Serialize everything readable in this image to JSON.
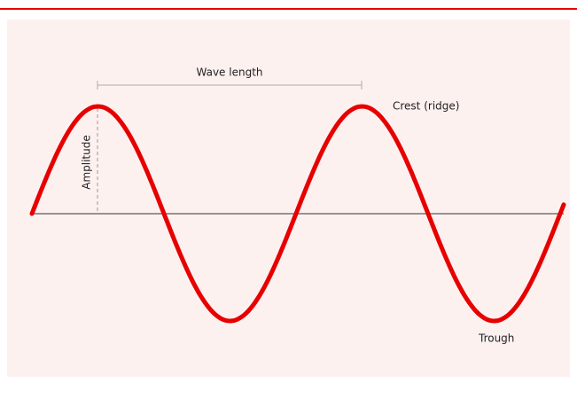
{
  "annotations": {
    "wave_length": "Wave length",
    "crest": "Crest (ridge)",
    "amplitude": "Amplitude",
    "trough": "Trough"
  }
}
